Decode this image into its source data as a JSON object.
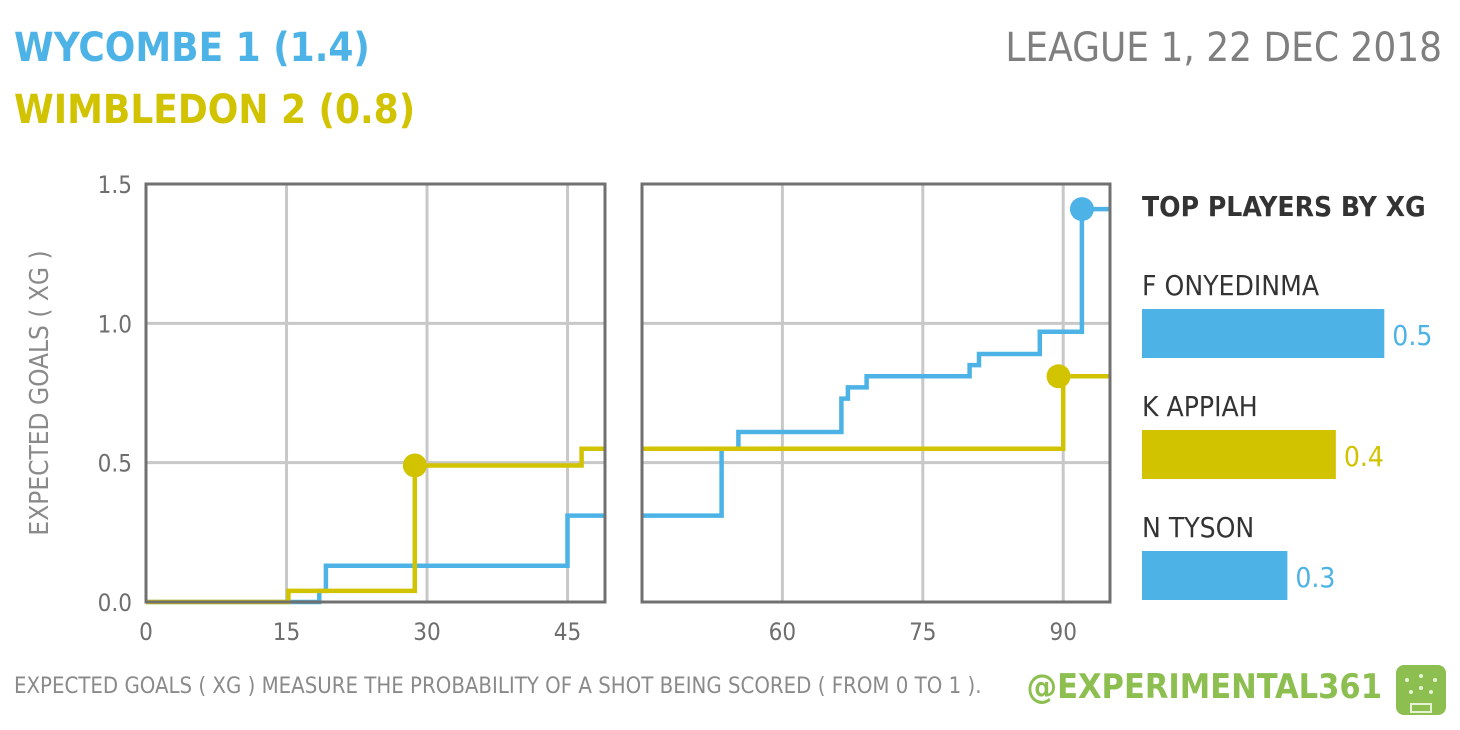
{
  "header": {
    "home_line": "WYCOMBE  1  (1.4)",
    "away_line": "WIMBLEDON  2  (0.8)",
    "match_info": "LEAGUE 1, 22 DEC 2018"
  },
  "colors": {
    "home": "#4db3e6",
    "away": "#d2c300",
    "grid": "#c8c8c8",
    "frame": "#707070",
    "brand": "#8cbf4f"
  },
  "chart_data": {
    "type": "line",
    "step": true,
    "ylabel": "EXPECTED GOALS ( XG )",
    "ylim": [
      0,
      1.5
    ],
    "yticks": [
      "0.0",
      "0.5",
      "1.0",
      "1.5"
    ],
    "grid": true,
    "panels": [
      {
        "xlim": [
          0,
          49
        ],
        "xticks": [
          0,
          15,
          30,
          45
        ]
      },
      {
        "xlim": [
          45,
          95
        ],
        "xticks": [
          60,
          75,
          90
        ]
      }
    ],
    "series": [
      {
        "name": "WYCOMBE",
        "color": "#4db3e6",
        "half1": [
          [
            0,
            0
          ],
          [
            18.5,
            0
          ],
          [
            18.5,
            0.04
          ],
          [
            19.2,
            0.04
          ],
          [
            19.2,
            0.13
          ],
          [
            45,
            0.13
          ],
          [
            45,
            0.31
          ],
          [
            49,
            0.31
          ]
        ],
        "half2": [
          [
            45,
            0.31
          ],
          [
            53.5,
            0.31
          ],
          [
            53.5,
            0.55
          ],
          [
            55.3,
            0.55
          ],
          [
            55.3,
            0.61
          ],
          [
            66.3,
            0.61
          ],
          [
            66.3,
            0.73
          ],
          [
            67,
            0.73
          ],
          [
            67,
            0.77
          ],
          [
            69,
            0.77
          ],
          [
            69,
            0.81
          ],
          [
            80,
            0.81
          ],
          [
            80,
            0.85
          ],
          [
            81,
            0.85
          ],
          [
            81,
            0.89
          ],
          [
            87.5,
            0.89
          ],
          [
            87.5,
            0.97
          ],
          [
            92,
            0.97
          ],
          [
            92,
            1.41
          ],
          [
            95,
            1.41
          ]
        ],
        "goals": [
          [
            92,
            1.41
          ]
        ]
      },
      {
        "name": "WIMBLEDON",
        "color": "#d2c300",
        "half1": [
          [
            0,
            0
          ],
          [
            15.2,
            0
          ],
          [
            15.2,
            0.04
          ],
          [
            28.7,
            0.04
          ],
          [
            28.7,
            0.49
          ],
          [
            46.5,
            0.49
          ],
          [
            46.5,
            0.55
          ],
          [
            49,
            0.55
          ]
        ],
        "half2": [
          [
            45,
            0.55
          ],
          [
            90,
            0.55
          ],
          [
            90,
            0.81
          ],
          [
            95,
            0.81
          ]
        ],
        "goals": [
          [
            28.7,
            0.49
          ],
          [
            89.5,
            0.81
          ]
        ]
      }
    ]
  },
  "top_players": {
    "title": "TOP PLAYERS BY XG",
    "players": [
      {
        "name": "F ONYEDINMA",
        "value": 0.5,
        "label": "0.5",
        "color": "#4db3e6"
      },
      {
        "name": "K APPIAH",
        "value": 0.4,
        "label": "0.4",
        "color": "#d2c300"
      },
      {
        "name": "N TYSON",
        "value": 0.3,
        "label": "0.3",
        "color": "#4db3e6"
      }
    ],
    "bar_max": 0.52
  },
  "footer": {
    "note": "EXPECTED GOALS ( XG ) MEASURE THE PROBABILITY  OF A SHOT BEING SCORED ( FROM 0 TO 1 ).",
    "brand": "@EXPERIMENTAL361",
    "logo_icon": "pitch-icon"
  }
}
